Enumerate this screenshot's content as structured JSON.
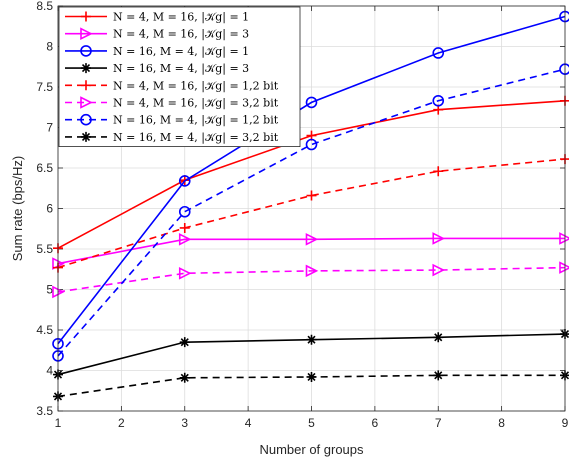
{
  "chart_data": {
    "type": "line",
    "xlabel": "Number of groups",
    "ylabel": "Sum rate (bps/Hz)",
    "xlim": [
      1,
      9
    ],
    "ylim": [
      3.5,
      8.5
    ],
    "xticks": [
      "1",
      "2",
      "3",
      "4",
      "5",
      "6",
      "7",
      "8",
      "9"
    ],
    "yticks": [
      "3.5",
      "4",
      "4.5",
      "5",
      "5.5",
      "6",
      "6.5",
      "7",
      "7.5",
      "8",
      "8.5"
    ],
    "grid": true,
    "legend_position": "top-left",
    "x": [
      1,
      3,
      5,
      7,
      9
    ],
    "series": [
      {
        "name": "N = 4, M = 16, |𝒦g| = 1",
        "color": "#ff0000",
        "dash": "solid",
        "marker": "plus",
        "values": [
          5.51,
          6.35,
          6.9,
          7.22,
          7.33
        ]
      },
      {
        "name": "N = 4, M = 16, |𝒦g| = 3",
        "color": "#ff00ff",
        "dash": "solid",
        "marker": "triangle-right",
        "values": [
          5.32,
          5.62,
          5.62,
          5.63,
          5.63
        ]
      },
      {
        "name": "N = 16, M = 4, |𝒦g| = 1",
        "color": "#0000ff",
        "dash": "solid",
        "marker": "circle",
        "values": [
          4.33,
          6.34,
          7.31,
          7.92,
          8.37
        ]
      },
      {
        "name": "N = 16, M = 4, |𝒦g| = 3",
        "color": "#000000",
        "dash": "solid",
        "marker": "asterisk",
        "values": [
          3.95,
          4.35,
          4.38,
          4.41,
          4.45
        ]
      },
      {
        "name": "N = 4, M = 16, |𝒦g| = 1,2 bit",
        "color": "#ff0000",
        "dash": "dashed",
        "marker": "plus",
        "values": [
          5.27,
          5.76,
          6.16,
          6.46,
          6.61
        ]
      },
      {
        "name": "N = 4, M = 16, |𝒦g| = 3,2 bit",
        "color": "#ff00ff",
        "dash": "dashed",
        "marker": "triangle-right",
        "values": [
          4.97,
          5.2,
          5.23,
          5.24,
          5.27
        ]
      },
      {
        "name": "N = 16, M = 4, |𝒦g| = 1,2 bit",
        "color": "#0000ff",
        "dash": "dashed",
        "marker": "circle",
        "values": [
          4.18,
          5.96,
          6.79,
          7.33,
          7.72
        ]
      },
      {
        "name": "N = 16, M = 4, |𝒦g| = 3,2 bit",
        "color": "#000000",
        "dash": "dashed",
        "marker": "asterisk",
        "values": [
          3.68,
          3.91,
          3.92,
          3.94,
          3.94
        ]
      }
    ]
  }
}
